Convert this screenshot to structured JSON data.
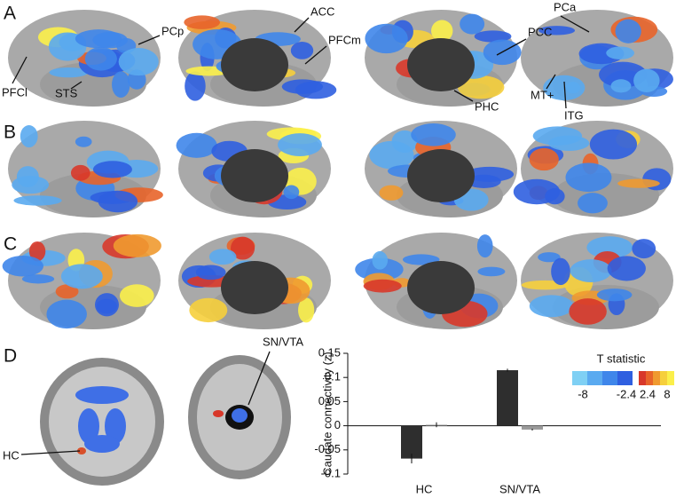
{
  "panels": [
    "A",
    "B",
    "C",
    "D"
  ],
  "annotations": [
    "PFCl",
    "STS",
    "PCp",
    "ACC",
    "PFCm",
    "PCa",
    "PCC",
    "PHC",
    "MT+",
    "ITG",
    "HC",
    "SN/VTA"
  ],
  "colorbar": {
    "title": "T statistic",
    "ticks": [
      -8,
      -2.4,
      2.4,
      8
    ],
    "negative_colors": [
      "#7fd0f4",
      "#5aaaf0",
      "#3f86ea",
      "#2f5fe0"
    ],
    "positive_colors": [
      "#d8382a",
      "#e8642a",
      "#f09a30",
      "#f6cf3c",
      "#fbef4a"
    ]
  },
  "chart_data": {
    "type": "bar",
    "ylabel": "Caudate connectivity (z)",
    "categories": [
      "HC",
      "SN/VTA"
    ],
    "series": [
      {
        "color": "#2e2e2e",
        "values": [
          -0.068,
          0.115
        ],
        "errors": [
          0.01,
          0.003
        ]
      },
      {
        "color": "#9a9a9a",
        "values": [
          0.002,
          -0.008
        ],
        "errors": [
          0.005,
          0.002
        ]
      }
    ],
    "ylim": [
      -0.1,
      0.15
    ],
    "yticks": [
      -0.1,
      -0.05,
      0,
      0.05,
      0.1,
      0.15
    ]
  }
}
